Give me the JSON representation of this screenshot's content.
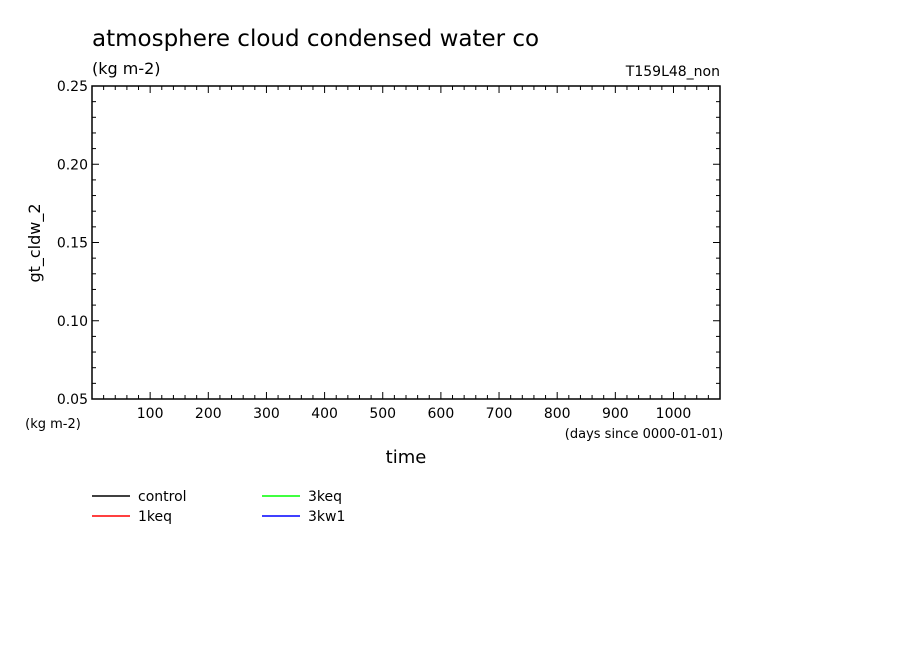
{
  "chart_data": {
    "type": "line",
    "title": "atmosphere cloud condensed water co",
    "units": "(kg m-2)",
    "run_label": "T159L48_non",
    "ylabel": "gt_cldw_2",
    "y_units_label": "(kg m-2)",
    "xlabel": "time",
    "x_units_label": "(days since 0000-01-01)",
    "xlim": [
      0,
      1080
    ],
    "ylim": [
      0.05,
      0.25
    ],
    "x_major_ticks": [
      100,
      200,
      300,
      400,
      500,
      600,
      700,
      800,
      900,
      1000
    ],
    "x_tick_labels": [
      "100",
      "200",
      "300",
      "400",
      "500",
      "600",
      "700",
      "800",
      "900",
      "1000"
    ],
    "y_major_ticks": [
      0.05,
      0.1,
      0.15,
      0.2,
      0.25
    ],
    "y_tick_labels": [
      "0.05",
      "0.10",
      "0.15",
      "0.20",
      "0.25"
    ],
    "grid": false,
    "legend_position": "bottom",
    "series": [
      {
        "name": "control",
        "color": "#000000",
        "x": [],
        "y": []
      },
      {
        "name": "1keq",
        "color": "#ff0000",
        "x": [],
        "y": []
      },
      {
        "name": "3keq",
        "color": "#00ff00",
        "x": [],
        "y": []
      },
      {
        "name": "3kw1",
        "color": "#0000ff",
        "x": [],
        "y": []
      }
    ]
  }
}
